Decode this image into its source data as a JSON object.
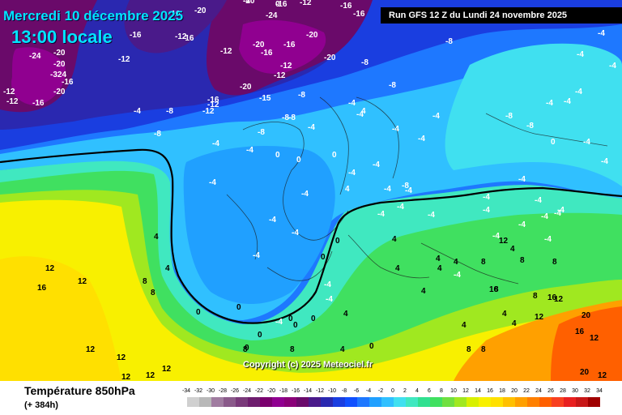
{
  "title": "Mercredi 10 décembre 2025",
  "local_time": "13:00 locale",
  "run_info": "Run GFS 12 Z du Lundi 24 novembre 2025",
  "copyright": "Copyright (c) 2025 Meteociel.fr",
  "variable": "Température 850hPa",
  "lead_time": "(+ 384h)",
  "scale": {
    "ticks": [
      "-34",
      "-32",
      "-30",
      "-28",
      "-26",
      "-24",
      "-22",
      "-20",
      "-18",
      "-16",
      "-14",
      "-12",
      "-10",
      "-8",
      "-6",
      "-4",
      "-2",
      "0",
      "2",
      "4",
      "6",
      "8",
      "10",
      "12",
      "14",
      "16",
      "18",
      "20",
      "22",
      "24",
      "26",
      "28",
      "30",
      "32",
      "34"
    ],
    "colors": [
      "#d0d0d0",
      "#b8b8b8",
      "#a07ca0",
      "#8a5a8a",
      "#7a3a7a",
      "#6e1e6e",
      "#7a006e",
      "#900090",
      "#8a0078",
      "#6a0a6a",
      "#4a1a8a",
      "#2a28b0",
      "#1a3ee0",
      "#1050ff",
      "#1e78ff",
      "#20a0ff",
      "#30c0ff",
      "#40e0f0",
      "#40e8c0",
      "#30e090",
      "#40e060",
      "#70e040",
      "#a0e820",
      "#d8f000",
      "#f8f000",
      "#ffe000",
      "#ffc000",
      "#ffa000",
      "#ff8000",
      "#ff6000",
      "#f84020",
      "#e82020",
      "#c81818",
      "#a00000"
    ]
  },
  "map_labels": [
    {
      "t": "-20",
      "c": "w"
    },
    {
      "t": "-16",
      "c": "w"
    },
    {
      "t": "-12",
      "c": "w"
    },
    {
      "t": "-16",
      "c": "w"
    },
    {
      "t": "-16",
      "c": "w"
    },
    {
      "t": "-16",
      "c": "w"
    },
    {
      "t": "-24",
      "c": "w"
    },
    {
      "t": "-20",
      "c": "w"
    },
    {
      "t": "-20",
      "c": "w"
    },
    {
      "t": "-12",
      "c": "w"
    },
    {
      "t": "-324",
      "c": "w"
    },
    {
      "t": "-16",
      "c": "w"
    },
    {
      "t": "-12",
      "c": "w"
    },
    {
      "t": "-20",
      "c": "w"
    },
    {
      "t": "-16",
      "c": "w"
    },
    {
      "t": "-12",
      "c": "w"
    },
    {
      "t": "-16",
      "c": "w"
    },
    {
      "t": "-12",
      "c": "w"
    },
    {
      "t": "-20",
      "c": "w"
    },
    {
      "t": "-24",
      "c": "w"
    },
    {
      "t": "-16",
      "c": "w"
    },
    {
      "t": "-12",
      "c": "w"
    },
    {
      "t": "-20",
      "c": "w"
    },
    {
      "t": "-16",
      "c": "w"
    },
    {
      "t": "-20",
      "c": "w"
    },
    {
      "t": "-12",
      "c": "w"
    },
    {
      "t": "-12",
      "c": "w"
    },
    {
      "t": "-16",
      "c": "w"
    },
    {
      "t": "-20",
      "c": "w"
    },
    {
      "t": "-8",
      "c": "w"
    },
    {
      "t": "-8",
      "c": "w"
    },
    {
      "t": "-8",
      "c": "w"
    },
    {
      "t": "-8",
      "c": "w"
    },
    {
      "t": "-20",
      "c": "w"
    },
    {
      "t": "-15",
      "c": "w"
    },
    {
      "t": "-12",
      "c": "w"
    },
    {
      "t": "-16",
      "c": "w"
    },
    {
      "t": "-12",
      "c": "w"
    },
    {
      "t": "-8",
      "c": "w"
    },
    {
      "t": "-4",
      "c": "w"
    },
    {
      "t": "-8",
      "c": "w"
    },
    {
      "t": "-4",
      "c": "w"
    },
    {
      "t": "-4",
      "c": "w"
    },
    {
      "t": "-8",
      "c": "w"
    },
    {
      "t": "-4",
      "c": "w"
    },
    {
      "t": "-8",
      "c": "w"
    },
    {
      "t": "-8",
      "c": "w"
    },
    {
      "t": "-4",
      "c": "w"
    },
    {
      "t": "-4",
      "c": "w"
    },
    {
      "t": "0",
      "c": "w"
    },
    {
      "t": "0",
      "c": "w"
    },
    {
      "t": "0",
      "c": "w"
    },
    {
      "t": "-4",
      "c": "w"
    },
    {
      "t": "-4",
      "c": "w"
    },
    {
      "t": "-4",
      "c": "w"
    },
    {
      "t": "-4",
      "c": "w"
    },
    {
      "t": "-4",
      "c": "w"
    },
    {
      "t": "-4",
      "c": "w"
    },
    {
      "t": "-4",
      "c": "w"
    },
    {
      "t": "-4",
      "c": "w"
    },
    {
      "t": "-4",
      "c": "w"
    },
    {
      "t": "-4",
      "c": "w"
    },
    {
      "t": "-4",
      "c": "w"
    },
    {
      "t": "-4",
      "c": "w"
    },
    {
      "t": "0",
      "c": "w"
    },
    {
      "t": "-4",
      "c": "w"
    },
    {
      "t": "-4",
      "c": "w"
    },
    {
      "t": "-4",
      "c": "w"
    },
    {
      "t": "-4",
      "c": "w"
    },
    {
      "t": "-4",
      "c": "w"
    },
    {
      "t": "-4",
      "c": "w"
    },
    {
      "t": "-4",
      "c": "w"
    },
    {
      "t": "-4",
      "c": "w"
    },
    {
      "t": "-4",
      "c": "w"
    },
    {
      "t": "0",
      "c": "w"
    },
    {
      "t": "0",
      "c": "w"
    },
    {
      "t": "0",
      "c": "w"
    },
    {
      "t": "0",
      "c": "w"
    },
    {
      "t": "0",
      "c": "w"
    },
    {
      "t": "-4",
      "c": "w"
    },
    {
      "t": "-4",
      "c": "w"
    },
    {
      "t": "-4",
      "c": "w"
    },
    {
      "t": "4",
      "c": "w"
    },
    {
      "t": "4",
      "c": "w"
    },
    {
      "t": "4",
      "c": "w"
    },
    {
      "t": "4",
      "c": "w"
    },
    {
      "t": "8",
      "c": "w"
    },
    {
      "t": "8",
      "c": "w"
    },
    {
      "t": "4",
      "c": "w"
    },
    {
      "t": "4",
      "c": "w"
    },
    {
      "t": "4",
      "c": "w"
    },
    {
      "t": "8",
      "c": "w"
    },
    {
      "t": "0",
      "c": "w"
    },
    {
      "t": "0",
      "c": "w"
    },
    {
      "t": "0",
      "c": "w"
    },
    {
      "t": "0",
      "c": "w"
    },
    {
      "t": "4",
      "c": "w"
    },
    {
      "t": "4",
      "c": "w"
    },
    {
      "t": "4",
      "c": "w"
    },
    {
      "t": "8",
      "c": "w"
    },
    {
      "t": "8",
      "c": "w"
    },
    {
      "t": "8",
      "c": "w"
    },
    {
      "t": "12",
      "c": "w"
    },
    {
      "t": "12",
      "c": "w"
    },
    {
      "t": "12",
      "c": "w"
    },
    {
      "t": "12",
      "c": "w"
    },
    {
      "t": "12",
      "c": "w"
    },
    {
      "t": "12",
      "c": "w"
    },
    {
      "t": "12",
      "c": "w"
    },
    {
      "t": "16",
      "c": "w"
    },
    {
      "t": "16",
      "c": "w"
    },
    {
      "t": "16",
      "c": "w"
    },
    {
      "t": "16",
      "c": "w"
    },
    {
      "t": "20",
      "c": "w"
    },
    {
      "t": "20",
      "c": "w"
    },
    {
      "t": "12",
      "c": "w"
    },
    {
      "t": "12",
      "c": "w"
    },
    {
      "t": "12",
      "c": "w"
    },
    {
      "t": "-4",
      "c": "w"
    },
    {
      "t": "-4",
      "c": "w"
    },
    {
      "t": "-4",
      "c": "w"
    },
    {
      "t": "0",
      "c": "w"
    },
    {
      "t": "4",
      "c": "w"
    },
    {
      "t": "4",
      "c": "w"
    },
    {
      "t": "4",
      "c": "w"
    },
    {
      "t": "8",
      "c": "w"
    },
    {
      "t": "8",
      "c": "w"
    },
    {
      "t": "8",
      "c": "w"
    },
    {
      "t": "12",
      "c": "w"
    },
    {
      "t": "8",
      "c": "w"
    },
    {
      "t": "8",
      "c": "w"
    },
    {
      "t": "12",
      "c": "w"
    },
    {
      "t": "4",
      "c": "w"
    },
    {
      "t": "4",
      "c": "w"
    },
    {
      "t": "4",
      "c": "w"
    },
    {
      "t": "-8",
      "c": "w"
    },
    {
      "t": "-4",
      "c": "w"
    },
    {
      "t": "-4",
      "c": "w"
    },
    {
      "t": "-4",
      "c": "w"
    },
    {
      "t": "-4",
      "c": "w"
    },
    {
      "t": "-8",
      "c": "w"
    },
    {
      "t": "-8",
      "c": "w"
    },
    {
      "t": "-4",
      "c": "w"
    },
    {
      "t": "-4",
      "c": "w"
    },
    {
      "t": "-4",
      "c": "w"
    },
    {
      "t": "-4",
      "c": "w"
    },
    {
      "t": "-4",
      "c": "w"
    },
    {
      "t": "-4",
      "c": "w"
    },
    {
      "t": "-4",
      "c": "w"
    },
    {
      "t": "0",
      "c": "w"
    }
  ]
}
